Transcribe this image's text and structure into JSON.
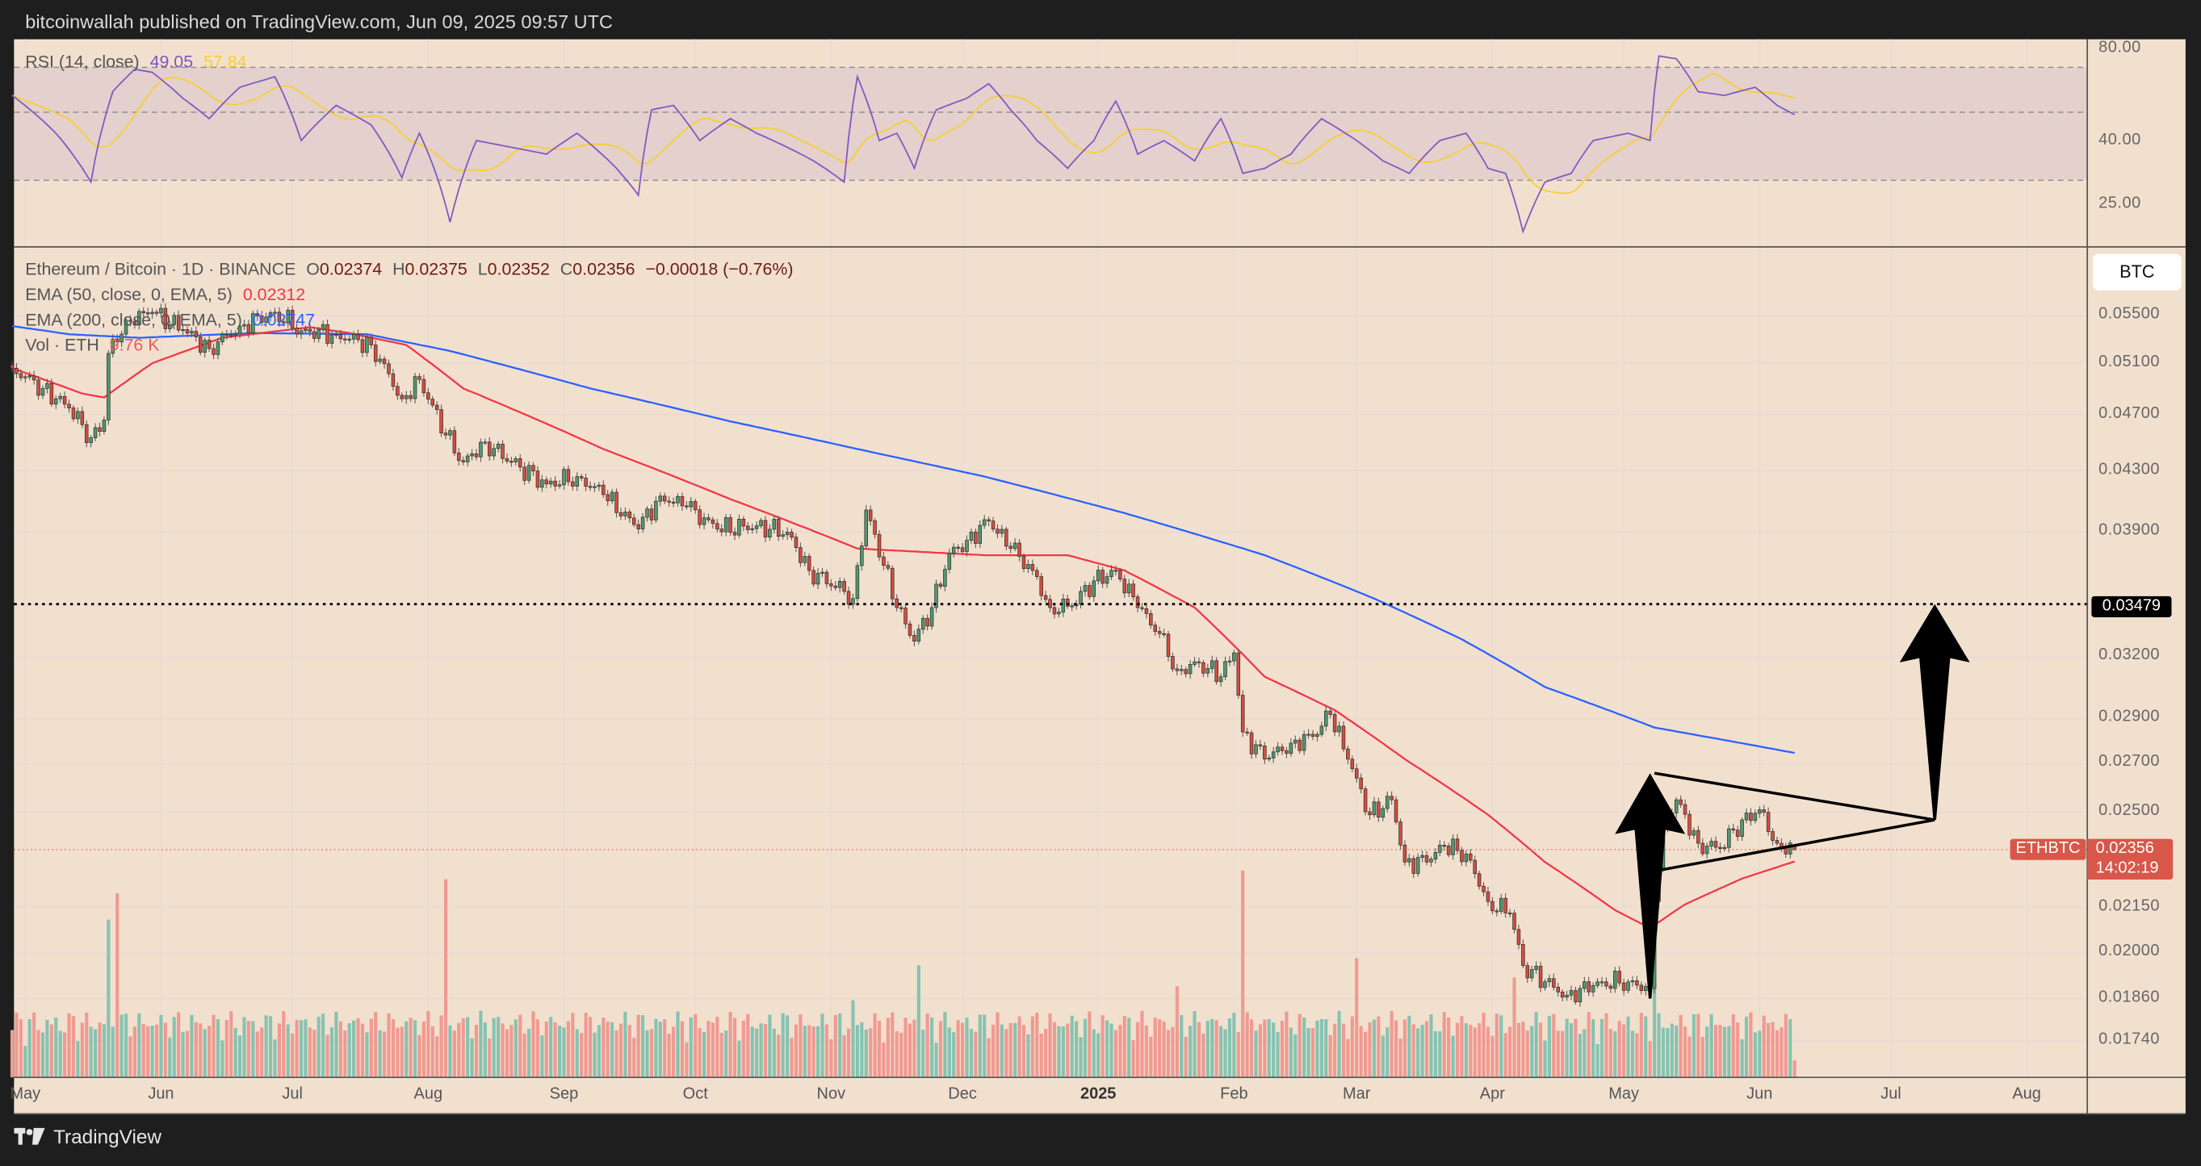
{
  "header": {
    "text": "bitcoinwallah published on TradingView.com, Jun 09, 2025 09:57 UTC"
  },
  "footer": {
    "brand": "TradingView"
  },
  "colors": {
    "background": "#f2e0cf",
    "up": "#4f9a6f",
    "down": "#d64d3f",
    "ema50": "#f23645",
    "ema200": "#2962ff",
    "rsi": "#7e57c2",
    "rsi_ma": "#f7d02c",
    "annotation": "#000000",
    "vol_up": "#86c3b1",
    "vol_down": "#f09a92"
  },
  "legend": {
    "symbol": "Ethereum / Bitcoin · 1D · BINANCE",
    "open_label": "O",
    "open": "0.02374",
    "high_label": "H",
    "high": "0.02375",
    "low_label": "L",
    "low": "0.02352",
    "close_label": "C",
    "close": "0.02356",
    "change": "−0.00018 (−0.76%)",
    "ema50_label": "EMA (50, close, 0, EMA, 5)",
    "ema50_value": "0.02312",
    "ema200_label": "EMA (200, close, 0, EMA, 5)",
    "ema200_value": "0.02747",
    "vol_label": "Vol · ETH",
    "vol_value": "9.76 K"
  },
  "rsi_legend": {
    "label": "RSI (14, close)",
    "value": "49.05",
    "ma_value": "57.84"
  },
  "currency_button": "BTC",
  "chart_data": [
    {
      "type": "candlestick",
      "title": "Ethereum / Bitcoin · 1D · BINANCE",
      "y_scale": "log",
      "y_ticks": [
        "0.05500",
        "0.05100",
        "0.04700",
        "0.04300",
        "0.03900",
        "0.03200",
        "0.02900",
        "0.02700",
        "0.02500",
        "0.02150",
        "0.02000",
        "0.01860",
        "0.01740"
      ],
      "x_ticks": [
        "May",
        "Jun",
        "Jul",
        "Aug",
        "Sep",
        "Oct",
        "Nov",
        "Dec",
        "2025",
        "Feb",
        "Mar",
        "Apr",
        "May",
        "Jun",
        "Jul",
        "Aug"
      ],
      "x_range": [
        "2024-04-28",
        "2025-08-20"
      ],
      "grid": true,
      "last_candle": {
        "date": "2025-06-09",
        "open": 0.02374,
        "high": 0.02375,
        "low": 0.02352,
        "close": 0.02356
      },
      "close_path": [
        [
          "2024-04-28",
          0.0506
        ],
        [
          "2024-05-05",
          0.049
        ],
        [
          "2024-05-11",
          0.0475
        ],
        [
          "2024-05-16",
          0.0453
        ],
        [
          "2024-05-19",
          0.0466
        ],
        [
          "2024-05-20",
          0.0518
        ],
        [
          "2024-05-24",
          0.0546
        ],
        [
          "2024-05-30",
          0.0553
        ],
        [
          "2024-06-06",
          0.0538
        ],
        [
          "2024-06-12",
          0.0522
        ],
        [
          "2024-06-19",
          0.0541
        ],
        [
          "2024-06-27",
          0.0553
        ],
        [
          "2024-07-03",
          0.0537
        ],
        [
          "2024-07-11",
          0.0534
        ],
        [
          "2024-07-19",
          0.0525
        ],
        [
          "2024-07-26",
          0.0482
        ],
        [
          "2024-07-30",
          0.0497
        ],
        [
          "2024-08-05",
          0.0455
        ],
        [
          "2024-08-09",
          0.0436
        ],
        [
          "2024-08-14",
          0.045
        ],
        [
          "2024-08-20",
          0.0436
        ],
        [
          "2024-08-28",
          0.0421
        ],
        [
          "2024-09-04",
          0.0426
        ],
        [
          "2024-09-10",
          0.0414
        ],
        [
          "2024-09-18",
          0.0392
        ],
        [
          "2024-09-23",
          0.0413
        ],
        [
          "2024-09-29",
          0.0406
        ],
        [
          "2024-10-06",
          0.0392
        ],
        [
          "2024-10-15",
          0.0394
        ],
        [
          "2024-10-22",
          0.039
        ],
        [
          "2024-10-27",
          0.0367
        ],
        [
          "2024-11-04",
          0.0355
        ],
        [
          "2024-11-06",
          0.0351
        ],
        [
          "2024-11-09",
          0.0404
        ],
        [
          "2024-11-13",
          0.037
        ],
        [
          "2024-11-16",
          0.0346
        ],
        [
          "2024-11-20",
          0.0328
        ],
        [
          "2024-11-24",
          0.0346
        ],
        [
          "2024-11-28",
          0.0377
        ],
        [
          "2024-12-02",
          0.0385
        ],
        [
          "2024-12-07",
          0.0397
        ],
        [
          "2024-12-12",
          0.038
        ],
        [
          "2024-12-17",
          0.0367
        ],
        [
          "2024-12-21",
          0.0346
        ],
        [
          "2024-12-26",
          0.0347
        ],
        [
          "2024-12-31",
          0.0361
        ],
        [
          "2025-01-05",
          0.0367
        ],
        [
          "2025-01-10",
          0.0346
        ],
        [
          "2025-01-15",
          0.0332
        ],
        [
          "2025-01-19",
          0.0313
        ],
        [
          "2025-01-24",
          0.0317
        ],
        [
          "2025-01-29",
          0.031
        ],
        [
          "2025-02-01",
          0.0322
        ],
        [
          "2025-02-03",
          0.0284
        ],
        [
          "2025-02-08",
          0.0272
        ],
        [
          "2025-02-14",
          0.0279
        ],
        [
          "2025-02-19",
          0.0282
        ],
        [
          "2025-02-23",
          0.0292
        ],
        [
          "2025-02-27",
          0.0272
        ],
        [
          "2025-03-04",
          0.0249
        ],
        [
          "2025-03-09",
          0.0255
        ],
        [
          "2025-03-12",
          0.0231
        ],
        [
          "2025-03-17",
          0.0231
        ],
        [
          "2025-03-21",
          0.0237
        ],
        [
          "2025-03-26",
          0.0234
        ],
        [
          "2025-03-31",
          0.0217
        ],
        [
          "2025-04-05",
          0.0213
        ],
        [
          "2025-04-08",
          0.0196
        ],
        [
          "2025-04-13",
          0.0191
        ],
        [
          "2025-04-18",
          0.0187
        ],
        [
          "2025-04-21",
          0.0189
        ],
        [
          "2025-04-26",
          0.0191
        ],
        [
          "2025-05-02",
          0.0191
        ],
        [
          "2025-05-07",
          0.0189
        ],
        [
          "2025-05-08",
          0.0217
        ],
        [
          "2025-05-10",
          0.0244
        ],
        [
          "2025-05-13",
          0.0255
        ],
        [
          "2025-05-18",
          0.0238
        ],
        [
          "2025-05-23",
          0.0236
        ],
        [
          "2025-05-28",
          0.0247
        ],
        [
          "2025-06-01",
          0.0251
        ],
        [
          "2025-06-05",
          0.0238
        ],
        [
          "2025-06-09",
          0.02356
        ]
      ],
      "ema50": [
        [
          "2024-04-28",
          0.0506
        ],
        [
          "2024-05-14",
          0.0486
        ],
        [
          "2024-05-19",
          0.0483
        ],
        [
          "2024-05-30",
          0.051
        ],
        [
          "2024-06-15",
          0.0531
        ],
        [
          "2024-07-05",
          0.054
        ],
        [
          "2024-07-14",
          0.0535
        ],
        [
          "2024-07-27",
          0.0525
        ],
        [
          "2024-08-09",
          0.049
        ],
        [
          "2024-09-10",
          0.0445
        ],
        [
          "2024-10-09",
          0.0411
        ],
        [
          "2024-11-07",
          0.038
        ],
        [
          "2024-12-06",
          0.0376
        ],
        [
          "2024-12-25",
          0.0376
        ],
        [
          "2025-01-07",
          0.0367
        ],
        [
          "2025-01-23",
          0.0346
        ],
        [
          "2025-02-08",
          0.031
        ],
        [
          "2025-02-24",
          0.0294
        ],
        [
          "2025-03-12",
          0.0272
        ],
        [
          "2025-03-31",
          0.0249
        ],
        [
          "2025-04-13",
          0.0231
        ],
        [
          "2025-04-29",
          0.0214
        ],
        [
          "2025-05-07",
          0.0208
        ],
        [
          "2025-05-15",
          0.0216
        ],
        [
          "2025-05-28",
          0.0225
        ],
        [
          "2025-06-09",
          0.02312
        ]
      ],
      "ema200": [
        [
          "2024-04-28",
          0.0541
        ],
        [
          "2024-05-11",
          0.0534
        ],
        [
          "2024-05-27",
          0.0531
        ],
        [
          "2024-06-22",
          0.0535
        ],
        [
          "2024-07-18",
          0.0534
        ],
        [
          "2024-08-06",
          0.052
        ],
        [
          "2024-09-07",
          0.049
        ],
        [
          "2024-10-09",
          0.0465
        ],
        [
          "2024-11-10",
          0.0443
        ],
        [
          "2024-12-06",
          0.0426
        ],
        [
          "2025-01-07",
          0.0402
        ],
        [
          "2025-02-08",
          0.0376
        ],
        [
          "2025-03-05",
          0.0351
        ],
        [
          "2025-03-25",
          0.0329
        ],
        [
          "2025-04-13",
          0.0305
        ],
        [
          "2025-05-08",
          0.0286
        ],
        [
          "2025-06-09",
          0.02747
        ]
      ],
      "volume_k": {
        "last": 9.76,
        "spikes": [
          [
            "2024-05-20",
            90
          ],
          [
            "2024-05-22",
            105
          ],
          [
            "2024-08-05",
            113
          ],
          [
            "2024-11-06",
            44
          ],
          [
            "2024-11-21",
            64
          ],
          [
            "2025-01-19",
            52
          ],
          [
            "2025-02-03",
            118
          ],
          [
            "2025-03-01",
            68
          ],
          [
            "2025-04-06",
            57
          ],
          [
            "2025-05-08",
            62
          ]
        ]
      },
      "horizontal_level": {
        "value": 0.03479,
        "label": "0.03479",
        "style": "dotted"
      },
      "current_price": {
        "symbol": "ETHBTC",
        "value": "0.02356",
        "countdown": "14:02:19"
      },
      "annotations": {
        "pennant": {
          "apex": [
            "2025-07-11",
            0.0247
          ],
          "top_start": [
            "2025-05-08",
            0.0266
          ],
          "bottom_start": [
            "2025-05-09",
            0.0228
          ]
        },
        "flagpole_arrow": {
          "from": [
            "2025-05-07",
            0.0186
          ],
          "to": [
            "2025-05-07",
            0.0266
          ]
        },
        "target_arrow": {
          "from": [
            "2025-07-11",
            0.0247
          ],
          "to": [
            "2025-07-11",
            0.03479
          ]
        }
      }
    },
    {
      "type": "line",
      "title": "RSI (14, close)",
      "y_scale": "log",
      "y_ticks": [
        "80.00",
        "40.00",
        "25.00"
      ],
      "bands": [
        70,
        50,
        30
      ],
      "series": [
        {
          "name": "RSI",
          "values": [
            [
              "2024-04-28",
              56.7
            ],
            [
              "2024-05-08",
              42.7
            ],
            [
              "2024-05-16",
              29.6
            ],
            [
              "2024-05-21",
              58.4
            ],
            [
              "2024-05-26",
              69
            ],
            [
              "2024-05-30",
              67.4
            ],
            [
              "2024-06-06",
              55.5
            ],
            [
              "2024-06-12",
              47.6
            ],
            [
              "2024-06-19",
              60.3
            ],
            [
              "2024-06-27",
              65.2
            ],
            [
              "2024-07-03",
              40.4
            ],
            [
              "2024-07-11",
              52.6
            ],
            [
              "2024-07-19",
              45.4
            ],
            [
              "2024-07-26",
              30.6
            ],
            [
              "2024-07-30",
              42.7
            ],
            [
              "2024-08-06",
              21.9
            ],
            [
              "2024-08-12",
              40.4
            ],
            [
              "2024-08-20",
              38.4
            ],
            [
              "2024-08-28",
              36.5
            ],
            [
              "2024-09-04",
              42.7
            ],
            [
              "2024-09-13",
              32.8
            ],
            [
              "2024-09-18",
              26.8
            ],
            [
              "2024-09-21",
              50.9
            ],
            [
              "2024-09-26",
              52.6
            ],
            [
              "2024-10-02",
              40.4
            ],
            [
              "2024-10-09",
              47.6
            ],
            [
              "2024-10-15",
              42.7
            ],
            [
              "2024-10-22",
              38.4
            ],
            [
              "2024-10-28",
              34.7
            ],
            [
              "2024-11-04",
              29.6
            ],
            [
              "2024-11-07",
              65.2
            ],
            [
              "2024-11-12",
              40.4
            ],
            [
              "2024-11-16",
              42.7
            ],
            [
              "2024-11-20",
              32.8
            ],
            [
              "2024-11-25",
              50.9
            ],
            [
              "2024-12-02",
              55.5
            ],
            [
              "2024-12-07",
              61.9
            ],
            [
              "2024-12-12",
              50.9
            ],
            [
              "2024-12-18",
              40.4
            ],
            [
              "2024-12-25",
              32.8
            ],
            [
              "2024-12-31",
              40.4
            ],
            [
              "2025-01-05",
              54.3
            ],
            [
              "2025-01-10",
              36.5
            ],
            [
              "2025-01-16",
              40.4
            ],
            [
              "2025-01-23",
              34.7
            ],
            [
              "2025-01-29",
              47.6
            ],
            [
              "2025-02-03",
              31.6
            ],
            [
              "2025-02-08",
              32.8
            ],
            [
              "2025-02-14",
              36.5
            ],
            [
              "2025-02-21",
              47.6
            ],
            [
              "2025-03-01",
              40.4
            ],
            [
              "2025-03-07",
              34.7
            ],
            [
              "2025-03-13",
              31.6
            ],
            [
              "2025-03-20",
              40.4
            ],
            [
              "2025-03-26",
              42.7
            ],
            [
              "2025-03-31",
              32.8
            ],
            [
              "2025-04-04",
              31.6
            ],
            [
              "2025-04-08",
              20.4
            ],
            [
              "2025-04-13",
              29.6
            ],
            [
              "2025-04-19",
              31.6
            ],
            [
              "2025-04-24",
              40.4
            ],
            [
              "2025-05-02",
              42.7
            ],
            [
              "2025-05-07",
              40.4
            ],
            [
              "2025-05-09",
              76.2
            ],
            [
              "2025-05-13",
              74.7
            ],
            [
              "2025-05-18",
              58.3
            ],
            [
              "2025-05-24",
              56.7
            ],
            [
              "2025-05-31",
              60.3
            ],
            [
              "2025-06-05",
              52.6
            ],
            [
              "2025-06-09",
              49.05
            ]
          ]
        },
        {
          "name": "RSI MA",
          "last": 57.84
        }
      ]
    }
  ]
}
